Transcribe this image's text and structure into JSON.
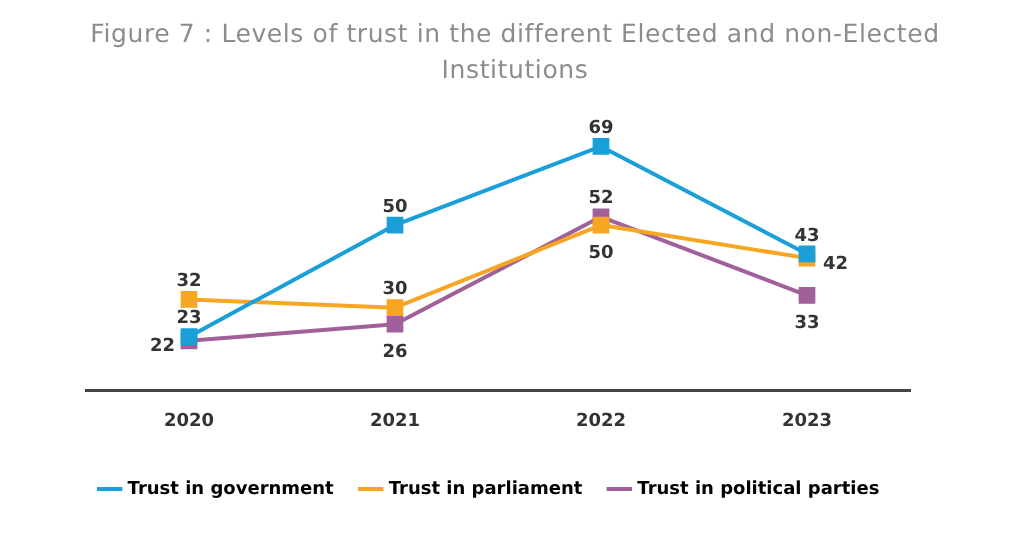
{
  "chart_data": {
    "type": "line",
    "title": "Figure 7 : Levels of trust in the different Elected and non-Elected Institutions",
    "categories": [
      "2020",
      "2021",
      "2022",
      "2023"
    ],
    "series": [
      {
        "name": "Trust in government",
        "color": "#1a9fd8",
        "values": [
          23,
          50,
          69,
          43
        ]
      },
      {
        "name": "Trust in parliament",
        "color": "#f6a623",
        "values": [
          32,
          30,
          50,
          42
        ]
      },
      {
        "name": "Trust in political parties",
        "color": "#a0609a",
        "values": [
          22,
          26,
          52,
          33
        ]
      }
    ],
    "tick_labels": "x",
    "grid": false,
    "legend": "bottom",
    "marker": "square",
    "line_style": "solid",
    "data_labels": true
  }
}
